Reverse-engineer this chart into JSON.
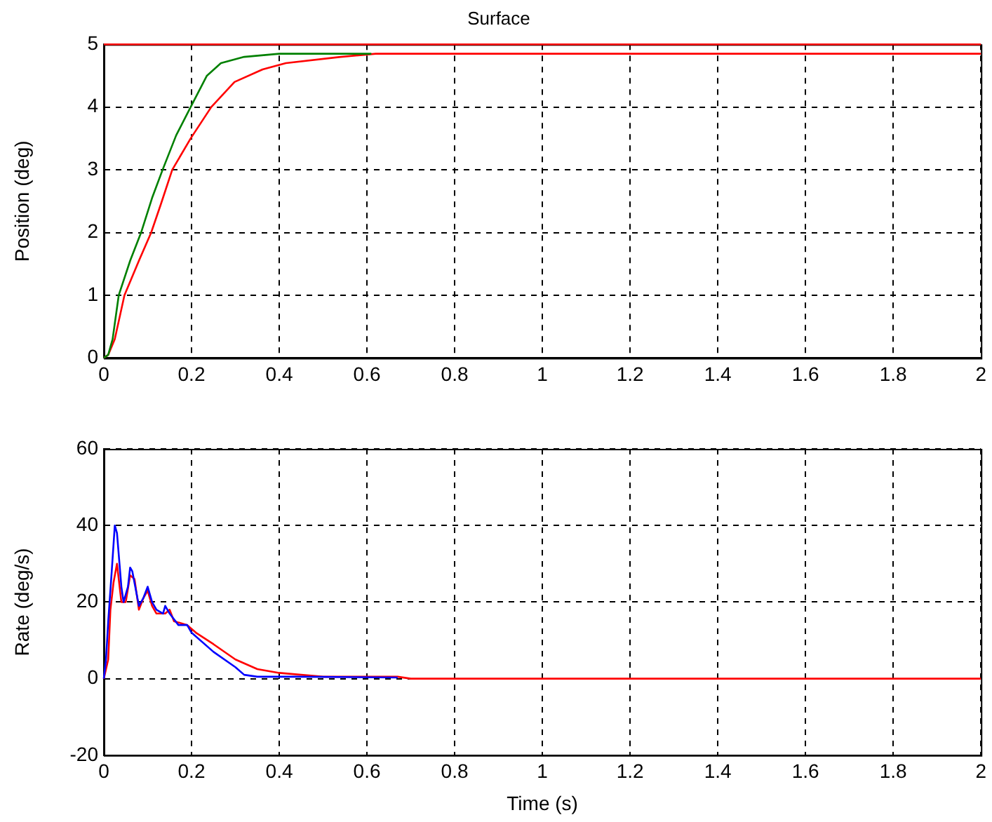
{
  "chart_data": [
    {
      "type": "line",
      "title": "Surface",
      "ylabel": "Position (deg)",
      "xlim": [
        0,
        2
      ],
      "ylim": [
        0,
        5
      ],
      "xticks": [
        0,
        0.2,
        0.4,
        0.6,
        0.8,
        1,
        1.2,
        1.4,
        1.6,
        1.8,
        2
      ],
      "yticks": [
        0,
        1,
        2,
        3,
        4,
        5
      ],
      "grid": true,
      "series": [
        {
          "color": "#ff0000",
          "x": [
            0,
            2
          ],
          "values": [
            5,
            5
          ]
        },
        {
          "color": "#008000",
          "x": [
            0,
            0.01,
            0.02,
            0.034,
            0.06,
            0.085,
            0.11,
            0.134,
            0.165,
            0.198,
            0.235,
            0.267,
            0.32,
            0.4,
            0.5,
            0.61
          ],
          "values": [
            0,
            0.05,
            0.3,
            1,
            1.55,
            2,
            2.55,
            3,
            3.55,
            4,
            4.5,
            4.7,
            4.8,
            4.85,
            4.85,
            4.85
          ]
        },
        {
          "color": "#ff0000",
          "x": [
            0,
            0.01,
            0.025,
            0.047,
            0.08,
            0.108,
            0.13,
            0.156,
            0.198,
            0.245,
            0.298,
            0.362,
            0.415,
            0.54,
            0.62,
            2
          ],
          "values": [
            0,
            0.05,
            0.3,
            1,
            1.55,
            2,
            2.45,
            3,
            3.5,
            4,
            4.4,
            4.6,
            4.7,
            4.8,
            4.85,
            4.85
          ]
        }
      ]
    },
    {
      "type": "line",
      "xlabel": "Time (s)",
      "ylabel": "Rate (deg/s)",
      "xlim": [
        0,
        2
      ],
      "ylim": [
        -20,
        60
      ],
      "xticks": [
        0,
        0.2,
        0.4,
        0.6,
        0.8,
        1,
        1.2,
        1.4,
        1.6,
        1.8,
        2
      ],
      "yticks": [
        -20,
        0,
        20,
        40,
        60
      ],
      "grid": true,
      "series": [
        {
          "color": "#0000ff",
          "x": [
            0,
            0.005,
            0.01,
            0.018,
            0.025,
            0.03,
            0.04,
            0.045,
            0.055,
            0.06,
            0.065,
            0.075,
            0.08,
            0.09,
            0.1,
            0.11,
            0.12,
            0.135,
            0.14,
            0.15,
            0.17,
            0.19,
            0.2,
            0.25,
            0.3,
            0.32,
            0.35,
            0.45,
            0.67
          ],
          "values": [
            0,
            5,
            15,
            28,
            40,
            38,
            24,
            20,
            24,
            29,
            28,
            22,
            19,
            21,
            24,
            20,
            18,
            17,
            19,
            17,
            14,
            14,
            12,
            7,
            3,
            1,
            0.5,
            0.5,
            0.3
          ]
        },
        {
          "color": "#ff0000",
          "x": [
            0,
            0.01,
            0.015,
            0.022,
            0.03,
            0.035,
            0.04,
            0.05,
            0.06,
            0.07,
            0.08,
            0.09,
            0.1,
            0.11,
            0.12,
            0.14,
            0.15,
            0.16,
            0.19,
            0.21,
            0.25,
            0.3,
            0.35,
            0.4,
            0.5,
            0.67,
            0.7,
            2
          ],
          "values": [
            0,
            5,
            18,
            25,
            30,
            25,
            20,
            20,
            27,
            26,
            18,
            21,
            23,
            19,
            17,
            17,
            18,
            15,
            14,
            12,
            9,
            5,
            2.5,
            1.5,
            0.5,
            0.5,
            0,
            0
          ]
        }
      ]
    }
  ]
}
